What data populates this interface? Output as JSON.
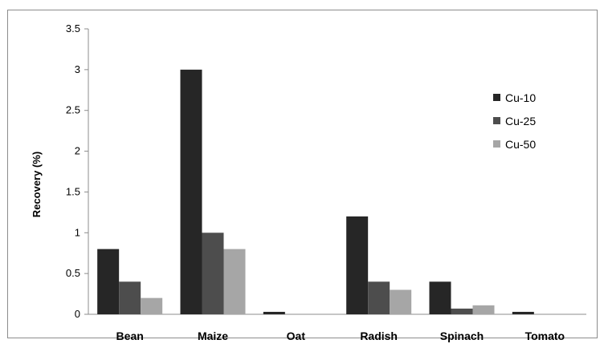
{
  "chart_data": {
    "type": "bar",
    "title": "",
    "xlabel": "",
    "ylabel": "Recovery (%)",
    "ylim": [
      0,
      3.5
    ],
    "yticks": [
      "0",
      "0.5",
      "1",
      "1.5",
      "2",
      "2.5",
      "3",
      "3.5"
    ],
    "yticks_values": [
      0,
      0.5,
      1,
      1.5,
      2,
      2.5,
      3,
      3.5
    ],
    "grid": false,
    "legend_position": "right",
    "categories": [
      "Bean",
      "Maize",
      "Oat",
      "Radish",
      "Spinach",
      "Tomato"
    ],
    "series": [
      {
        "name": "Cu-10",
        "color": "#262626",
        "values": [
          0.8,
          3.0,
          0.03,
          1.2,
          0.4,
          0.03
        ]
      },
      {
        "name": "Cu-25",
        "color": "#4d4d4d",
        "values": [
          0.4,
          1.0,
          0.0,
          0.4,
          0.07,
          0.0
        ]
      },
      {
        "name": "Cu-50",
        "color": "#a6a6a6",
        "values": [
          0.2,
          0.8,
          0.0,
          0.3,
          0.11,
          0.0
        ]
      }
    ]
  }
}
